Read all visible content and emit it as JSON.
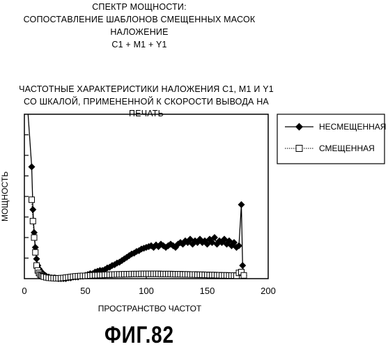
{
  "header": {
    "line1": "СПЕКТР МОЩНОСТИ:",
    "line2": "СОПОСТАВЛЕНИЕ ШАБЛОНОВ СМЕЩЕННЫХ МАСОК",
    "line3": "НАЛОЖЕНИЕ",
    "line4": "C1 + M1 + Y1"
  },
  "figure_label": "ФИГ.82",
  "chart_data": {
    "type": "line",
    "title_line1": "ЧАСТОТНЫЕ ХАРАКТЕРИСТИКИ НАЛОЖЕНИЯ C1, M1 И Y1",
    "title_line2": "СО ШКАЛОЙ, ПРИМЕНЕННОЙ К СКОРОСТИ ВЫВОДА НА ПЕЧАТЬ",
    "xlabel": "ПРОСТРАНСТВО ЧАСТОТ",
    "ylabel": "МОЩНОСТЬ",
    "xlim": [
      0,
      200
    ],
    "ylim": [
      0,
      100
    ],
    "xticks": [
      "0",
      "50",
      "100",
      "150",
      "200"
    ],
    "yticks_count": 8,
    "grid": false,
    "legend_position": "right",
    "series": [
      {
        "name": "НЕСМЕЩЕННАЯ",
        "marker": "diamond-filled",
        "color": "#000000",
        "points": [
          [
            6,
            68
          ],
          [
            7,
            42
          ],
          [
            8,
            28
          ],
          [
            9,
            19
          ],
          [
            10,
            12
          ],
          [
            11,
            8
          ],
          [
            12,
            6
          ],
          [
            13,
            5
          ],
          [
            14,
            4
          ],
          [
            15,
            3
          ],
          [
            16,
            2.5
          ],
          [
            17,
            2
          ],
          [
            18,
            1.5
          ],
          [
            20,
            1
          ],
          [
            22,
            0.5
          ],
          [
            25,
            0.5
          ],
          [
            28,
            0
          ],
          [
            30,
            0
          ],
          [
            32,
            0
          ],
          [
            34,
            0
          ],
          [
            36,
            0.5
          ],
          [
            38,
            0.5
          ],
          [
            40,
            1
          ],
          [
            42,
            1
          ],
          [
            44,
            1
          ],
          [
            46,
            1.5
          ],
          [
            48,
            1.5
          ],
          [
            50,
            2
          ],
          [
            52,
            2.5
          ],
          [
            54,
            3
          ],
          [
            56,
            3
          ],
          [
            58,
            4
          ],
          [
            60,
            4.5
          ],
          [
            62,
            5
          ],
          [
            64,
            5
          ],
          [
            66,
            5.5
          ],
          [
            68,
            6.5
          ],
          [
            70,
            7
          ],
          [
            72,
            8
          ],
          [
            74,
            8.5
          ],
          [
            76,
            9.5
          ],
          [
            78,
            10
          ],
          [
            80,
            11
          ],
          [
            82,
            12
          ],
          [
            84,
            13
          ],
          [
            86,
            14
          ],
          [
            88,
            15
          ],
          [
            90,
            15.5
          ],
          [
            92,
            16.5
          ],
          [
            94,
            17
          ],
          [
            96,
            18
          ],
          [
            98,
            18.5
          ],
          [
            100,
            19
          ],
          [
            102,
            19.5
          ],
          [
            104,
            20
          ],
          [
            106,
            19
          ],
          [
            108,
            20.5
          ],
          [
            110,
            19.5
          ],
          [
            112,
            21
          ],
          [
            114,
            20
          ],
          [
            116,
            19
          ],
          [
            118,
            20
          ],
          [
            120,
            21
          ],
          [
            122,
            20
          ],
          [
            124,
            19
          ],
          [
            126,
            21
          ],
          [
            128,
            22
          ],
          [
            130,
            21
          ],
          [
            132,
            23
          ],
          [
            134,
            22
          ],
          [
            136,
            24
          ],
          [
            138,
            21
          ],
          [
            140,
            23
          ],
          [
            142,
            22
          ],
          [
            144,
            24
          ],
          [
            146,
            22
          ],
          [
            148,
            23
          ],
          [
            150,
            21
          ],
          [
            152,
            24
          ],
          [
            154,
            22
          ],
          [
            156,
            25
          ],
          [
            158,
            21
          ],
          [
            160,
            23
          ],
          [
            162,
            22
          ],
          [
            164,
            24
          ],
          [
            166,
            21
          ],
          [
            168,
            23
          ],
          [
            170,
            20
          ],
          [
            172,
            22
          ],
          [
            174,
            19
          ],
          [
            176,
            20
          ],
          [
            178,
            45
          ],
          [
            179,
            8
          ],
          [
            180,
            2
          ]
        ]
      },
      {
        "name": "СМЕЩЕННАЯ",
        "marker": "square-open",
        "color": "#000000",
        "points": [
          [
            6,
            48
          ],
          [
            7,
            35
          ],
          [
            8,
            25
          ],
          [
            9,
            16
          ],
          [
            10,
            8
          ],
          [
            11,
            5
          ],
          [
            12,
            3.5
          ],
          [
            13,
            2.5
          ],
          [
            14,
            2
          ],
          [
            15,
            1.5
          ],
          [
            16,
            1.2
          ],
          [
            18,
            0.8
          ],
          [
            20,
            0.5
          ],
          [
            22,
            0.4
          ],
          [
            24,
            0.3
          ],
          [
            26,
            0.2
          ],
          [
            28,
            0.2
          ],
          [
            30,
            0.3
          ],
          [
            32,
            0.4
          ],
          [
            34,
            0.6
          ],
          [
            36,
            0.8
          ],
          [
            38,
            1
          ],
          [
            40,
            1.2
          ],
          [
            42,
            1.4
          ],
          [
            44,
            1.5
          ],
          [
            46,
            1.6
          ],
          [
            48,
            1.7
          ],
          [
            50,
            1.7
          ],
          [
            52,
            1.8
          ],
          [
            54,
            1.9
          ],
          [
            56,
            2
          ],
          [
            58,
            2.1
          ],
          [
            60,
            2.1
          ],
          [
            62,
            2.2
          ],
          [
            64,
            2.2
          ],
          [
            66,
            2.3
          ],
          [
            68,
            2.4
          ],
          [
            70,
            2.4
          ],
          [
            72,
            2.5
          ],
          [
            74,
            2.5
          ],
          [
            76,
            2.6
          ],
          [
            78,
            2.6
          ],
          [
            80,
            2.6
          ],
          [
            82,
            2.7
          ],
          [
            84,
            2.7
          ],
          [
            86,
            2.7
          ],
          [
            88,
            2.8
          ],
          [
            90,
            2.8
          ],
          [
            92,
            2.8
          ],
          [
            94,
            2.8
          ],
          [
            96,
            2.9
          ],
          [
            98,
            2.9
          ],
          [
            100,
            2.9
          ],
          [
            102,
            2.9
          ],
          [
            104,
            2.9
          ],
          [
            106,
            2.9
          ],
          [
            108,
            2.9
          ],
          [
            110,
            2.9
          ],
          [
            112,
            2.8
          ],
          [
            114,
            2.8
          ],
          [
            116,
            2.8
          ],
          [
            118,
            2.8
          ],
          [
            120,
            2.8
          ],
          [
            122,
            2.7
          ],
          [
            124,
            2.7
          ],
          [
            126,
            2.7
          ],
          [
            128,
            2.7
          ],
          [
            130,
            2.6
          ],
          [
            132,
            2.6
          ],
          [
            134,
            2.6
          ],
          [
            136,
            2.5
          ],
          [
            138,
            2.5
          ],
          [
            140,
            2.5
          ],
          [
            142,
            2.4
          ],
          [
            144,
            2.4
          ],
          [
            146,
            2.4
          ],
          [
            148,
            2.3
          ],
          [
            150,
            2.3
          ],
          [
            152,
            2.2
          ],
          [
            154,
            2.2
          ],
          [
            156,
            2.2
          ],
          [
            158,
            2.1
          ],
          [
            160,
            2.1
          ],
          [
            162,
            2
          ],
          [
            164,
            2
          ],
          [
            166,
            2
          ],
          [
            168,
            1.9
          ],
          [
            170,
            1.9
          ],
          [
            172,
            1.9
          ],
          [
            174,
            1.8
          ],
          [
            176,
            3.5
          ],
          [
            178,
            4
          ],
          [
            180,
            2
          ]
        ]
      }
    ]
  }
}
